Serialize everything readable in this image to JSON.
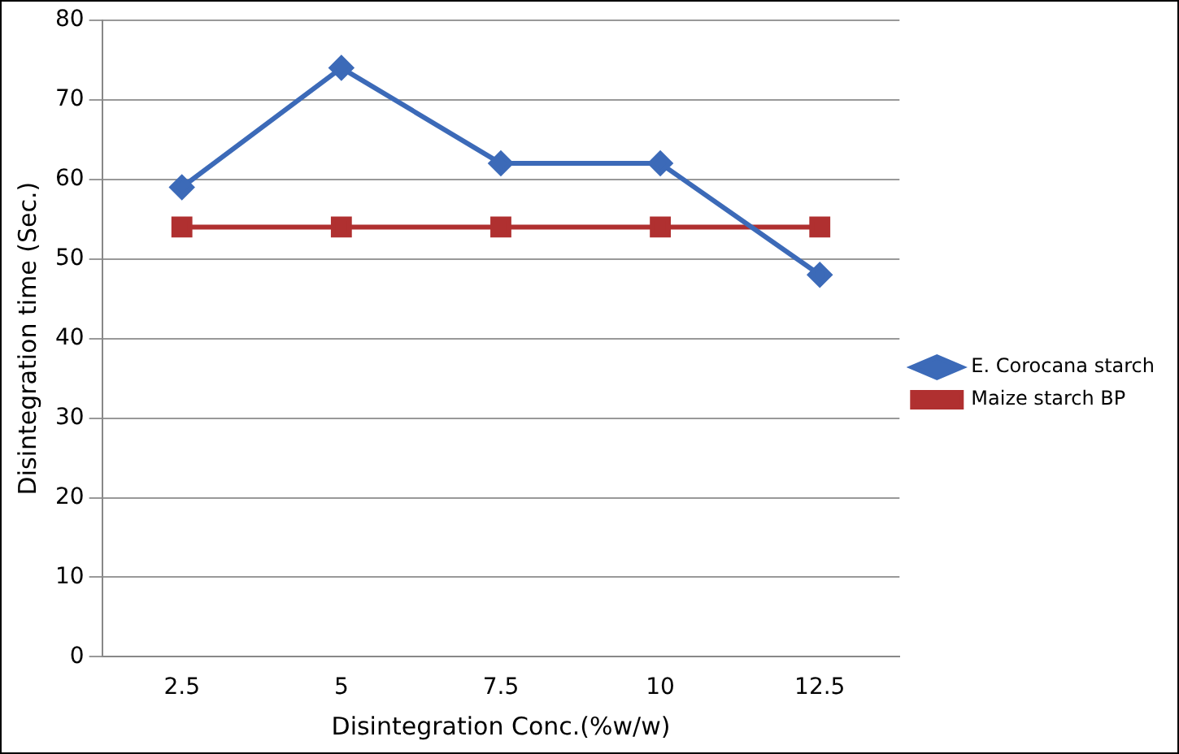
{
  "chart_data": {
    "type": "line",
    "xlabel": "Disintegration Conc.(%w/w)",
    "ylabel": "Disintegration time (Sec.)",
    "categories": [
      "2.5",
      "5",
      "7.5",
      "10",
      "12.5"
    ],
    "series": [
      {
        "name": "E. Corocana starch",
        "color": "#3c6ab8",
        "values": [
          59,
          74,
          62,
          62,
          48
        ],
        "marker": "diamond"
      },
      {
        "name": "Maize starch BP",
        "color": "#b03030",
        "values": [
          54,
          54,
          54,
          54,
          54
        ],
        "marker": "square"
      }
    ],
    "ylim": [
      0,
      80
    ],
    "yticks": [
      0,
      10,
      20,
      30,
      40,
      50,
      60,
      70,
      80
    ],
    "grid": "y",
    "legend": "right"
  }
}
